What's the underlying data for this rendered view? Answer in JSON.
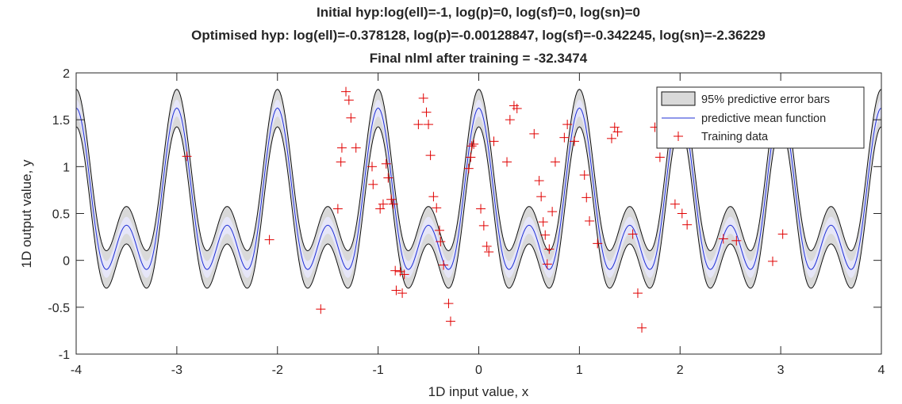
{
  "chart_data": {
    "type": "line",
    "title": [
      "Initial hyp:log(ell)=-1, log(p)=0, log(sf)=0, log(sn)=0",
      "Optimised hyp: log(ell)=-0.378128, log(p)=-0.00128847, log(sf)=-0.342245, log(sn)=-2.36229",
      "Final nlml after training = -32.3474"
    ],
    "xlabel": "1D input value, x",
    "ylabel": "1D output value, y",
    "xlim": [
      -4,
      4
    ],
    "ylim": [
      -1,
      2
    ],
    "xticks": [
      -4,
      -3,
      -2,
      -1,
      0,
      1,
      2,
      3,
      4
    ],
    "yticks": [
      -1,
      -0.5,
      0,
      0.5,
      1,
      1.5,
      2
    ],
    "xtick_labels": [
      "-4",
      "-3",
      "-2",
      "-1",
      "0",
      "1",
      "2",
      "3",
      "4"
    ],
    "ytick_labels": [
      "-1",
      "-0.5",
      "0",
      "0.5",
      "1",
      "1.5",
      "2"
    ],
    "grid": false,
    "legend_position": "top-right",
    "legend": [
      "95% predictive error bars",
      "predictive mean function",
      "Training data"
    ],
    "mean_function": {
      "form": "offset + a1*cos(2*pi*x) + a2*cos(4*pi*x)",
      "offset": 0.5,
      "a1": 0.625,
      "a2": 0.5,
      "band_halfwidth": 0.2,
      "samples": 641
    },
    "training_x": [
      -2.9,
      -2.08,
      -1.57,
      -1.4,
      -1.37,
      -1.36,
      -1.32,
      -1.29,
      -1.27,
      -1.22,
      -1.06,
      -1.05,
      -0.98,
      -0.95,
      -0.92,
      -0.9,
      -0.87,
      -0.85,
      -0.83,
      -0.82,
      -0.78,
      -0.76,
      -0.74,
      -0.6,
      -0.55,
      -0.52,
      -0.5,
      -0.48,
      -0.45,
      -0.42,
      -0.39,
      -0.38,
      -0.35,
      -0.3,
      -0.28,
      -0.1,
      -0.08,
      -0.07,
      -0.05,
      0.02,
      0.05,
      0.08,
      0.1,
      0.15,
      0.28,
      0.31,
      0.35,
      0.38,
      0.55,
      0.6,
      0.62,
      0.64,
      0.66,
      0.68,
      0.7,
      0.73,
      0.76,
      0.85,
      0.88,
      0.95,
      1.05,
      1.07,
      1.1,
      1.18,
      1.32,
      1.35,
      1.38,
      1.53,
      1.58,
      1.62,
      1.75,
      1.8,
      1.95,
      2.02,
      2.07,
      2.43,
      2.56,
      2.92,
      3.02
    ],
    "training_y": [
      1.11,
      0.22,
      -0.52,
      0.55,
      1.05,
      1.2,
      1.8,
      1.71,
      1.52,
      1.2,
      1.0,
      0.81,
      0.55,
      0.6,
      1.03,
      0.88,
      0.65,
      0.6,
      -0.11,
      -0.32,
      -0.12,
      -0.35,
      -0.15,
      1.45,
      1.73,
      1.58,
      1.45,
      1.12,
      0.68,
      0.56,
      0.32,
      0.2,
      -0.05,
      -0.46,
      -0.65,
      0.98,
      1.1,
      1.22,
      1.24,
      0.55,
      0.37,
      0.15,
      0.09,
      1.27,
      1.05,
      1.5,
      1.65,
      1.62,
      1.35,
      0.85,
      0.68,
      0.41,
      0.27,
      -0.04,
      0.12,
      0.52,
      1.05,
      1.31,
      1.45,
      1.27,
      0.91,
      0.67,
      0.42,
      0.18,
      1.3,
      1.42,
      1.37,
      0.28,
      -0.35,
      -0.72,
      1.42,
      1.1,
      0.6,
      0.5,
      0.38,
      0.23,
      0.21,
      -0.01,
      0.28
    ]
  }
}
